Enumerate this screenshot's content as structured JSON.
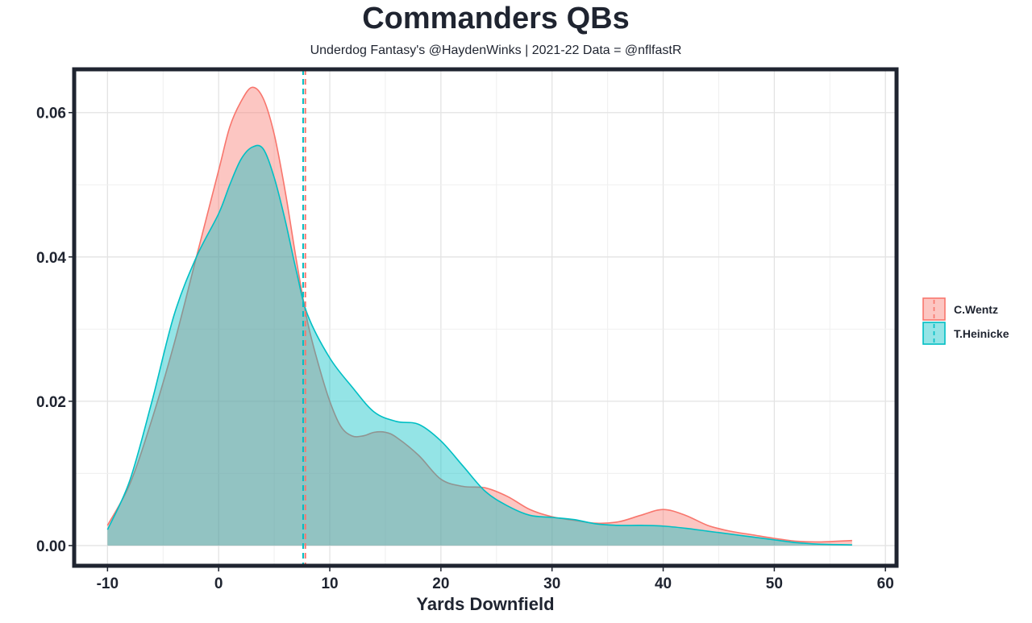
{
  "chart_data": {
    "type": "area",
    "title": "Commanders QBs",
    "subtitle": "Underdog Fantasy's @HaydenWinks | 2021-22 Data = @nflfastR",
    "xlabel": "Yards Downfield",
    "ylabel": "",
    "xlim": [
      -13,
      61
    ],
    "ylim": [
      -0.0028,
      0.066
    ],
    "x_ticks": [
      -10,
      0,
      10,
      20,
      30,
      40,
      50,
      60
    ],
    "y_ticks": [
      0.0,
      0.02,
      0.04,
      0.06
    ],
    "y_tick_labels": [
      "0.00",
      "0.02",
      "0.04",
      "0.06"
    ],
    "grid": true,
    "legend_position": "right",
    "series": [
      {
        "name": "C.Wentz",
        "color": "#F8766D",
        "mean_line_x": 7.8,
        "x": [
          -10,
          -8,
          -6,
          -4,
          -2,
          0,
          1,
          2,
          3,
          4,
          5,
          6,
          7,
          8,
          9,
          10,
          11,
          12,
          13,
          14,
          15,
          16,
          18,
          20,
          22,
          24,
          26,
          28,
          30,
          32,
          34,
          36,
          38,
          40,
          42,
          44,
          46,
          48,
          50,
          52,
          54,
          57
        ],
        "y": [
          0.0028,
          0.0085,
          0.0175,
          0.028,
          0.04,
          0.052,
          0.058,
          0.0615,
          0.0635,
          0.062,
          0.057,
          0.049,
          0.0395,
          0.031,
          0.025,
          0.02,
          0.0165,
          0.0152,
          0.0152,
          0.0157,
          0.0157,
          0.015,
          0.0125,
          0.0092,
          0.0082,
          0.008,
          0.0068,
          0.005,
          0.004,
          0.0035,
          0.0031,
          0.0033,
          0.0042,
          0.005,
          0.0042,
          0.0028,
          0.002,
          0.0015,
          0.001,
          0.0006,
          0.0005,
          0.0007
        ]
      },
      {
        "name": "T.Heinicke",
        "color": "#00BFC4",
        "mean_line_x": 7.6,
        "x": [
          -10,
          -8,
          -6,
          -4,
          -2,
          0,
          1,
          2,
          3,
          4,
          5,
          6,
          7,
          8,
          10,
          12,
          14,
          16,
          18,
          20,
          22,
          24,
          26,
          28,
          30,
          32,
          34,
          36,
          38,
          40,
          42,
          44,
          46,
          48,
          50,
          52,
          54,
          57
        ],
        "y": [
          0.0022,
          0.009,
          0.02,
          0.032,
          0.04,
          0.046,
          0.05,
          0.0535,
          0.0552,
          0.055,
          0.051,
          0.045,
          0.038,
          0.032,
          0.026,
          0.022,
          0.0185,
          0.0172,
          0.0168,
          0.0145,
          0.011,
          0.0075,
          0.0055,
          0.0042,
          0.0039,
          0.0036,
          0.003,
          0.0028,
          0.0028,
          0.0027,
          0.0024,
          0.002,
          0.0016,
          0.0012,
          0.0008,
          0.0004,
          0.0002,
          0.0001
        ]
      }
    ]
  }
}
